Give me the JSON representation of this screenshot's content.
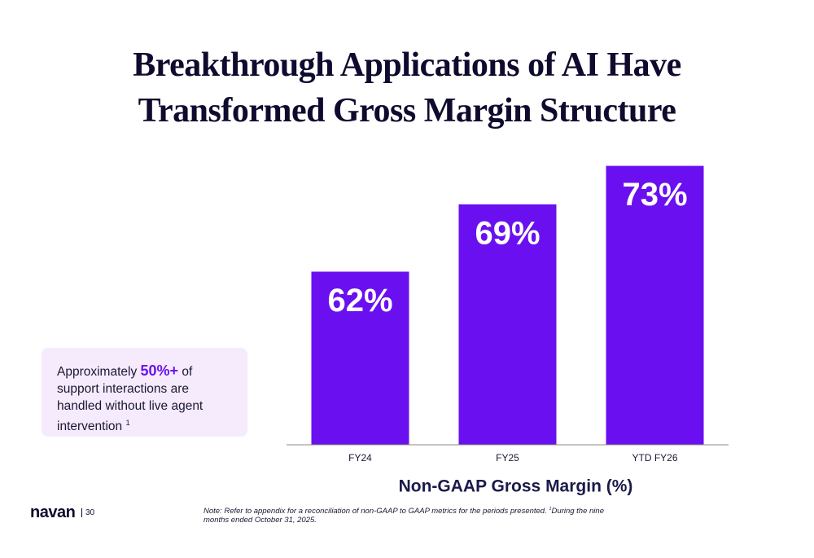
{
  "title": "Breakthrough Applications of AI Have Transformed Gross Margin Structure",
  "chart_data": {
    "type": "bar",
    "categories": [
      "FY24",
      "FY25",
      "YTD FY26"
    ],
    "values": [
      62,
      69,
      73
    ],
    "value_labels": [
      "62%",
      "69%",
      "73%"
    ],
    "color": "#6a10f0",
    "ylim": [
      44,
      75
    ],
    "x_label": "Non-GAAP Gross Margin (%)",
    "grid": false
  },
  "callout": {
    "prefix": "Approximately",
    "highlight": "50%+",
    "text": "of support interactions are handled without live agent intervention",
    "footnote_mark": "1"
  },
  "footer": {
    "logo": "navan",
    "page": "30",
    "note": "Note: Refer to appendix for a reconciliation of non-GAAP to GAAP metrics for the periods presented.",
    "note_mark": "1",
    "note_continued": "During the nine months ended October 31, 2025."
  }
}
